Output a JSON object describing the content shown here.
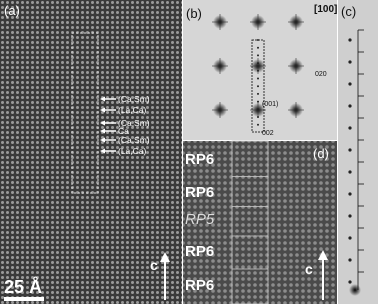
{
  "panel_a": {
    "label": "(a)",
    "site_labels": [
      "(Ca,Sm)",
      "(La,Ca)",
      "(Ca,Sm)",
      "Ca",
      "(Ca,Sm)",
      "(La,Ca)"
    ],
    "scale_bar": "25 Å",
    "axis": "c"
  },
  "panel_b": {
    "label": "(b)",
    "zone_axis": "[100]",
    "spots": [
      "020",
      "(001)",
      "002"
    ]
  },
  "panel_c": {
    "label": "(c)"
  },
  "panel_d": {
    "label": "(d)",
    "blocks": [
      "RP6",
      "RP6",
      "RP5",
      "RP6",
      "RP6"
    ],
    "axis": "c"
  }
}
